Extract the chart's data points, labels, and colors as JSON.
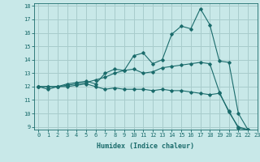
{
  "xlabel": "Humidex (Indice chaleur)",
  "background_color": "#c8e8e8",
  "grid_color": "#a8cccc",
  "line_color": "#1a6b6b",
  "xlim": [
    -0.5,
    23
  ],
  "ylim": [
    8.8,
    18.2
  ],
  "xticks": [
    0,
    1,
    2,
    3,
    4,
    5,
    6,
    7,
    8,
    9,
    10,
    11,
    12,
    13,
    14,
    15,
    16,
    17,
    18,
    19,
    20,
    21,
    22,
    23
  ],
  "yticks": [
    9,
    10,
    11,
    12,
    13,
    14,
    15,
    16,
    17,
    18
  ],
  "series": [
    [
      12.0,
      11.8,
      12.0,
      12.0,
      12.1,
      12.2,
      12.0,
      11.8,
      11.9,
      11.8,
      11.8,
      11.8,
      11.7,
      11.8,
      11.7,
      11.7,
      11.6,
      11.5,
      11.4,
      11.5,
      10.2,
      8.9,
      8.8
    ],
    [
      12.0,
      12.0,
      12.0,
      12.1,
      12.2,
      12.3,
      12.5,
      12.7,
      13.0,
      13.2,
      13.3,
      13.0,
      13.1,
      13.4,
      13.5,
      13.6,
      13.7,
      13.8,
      13.7,
      11.6,
      10.1,
      9.0,
      8.8
    ],
    [
      12.0,
      12.0,
      12.0,
      12.2,
      12.3,
      12.4,
      12.2,
      13.0,
      13.3,
      13.2,
      14.3,
      14.5,
      13.7,
      14.0,
      15.9,
      16.5,
      16.3,
      17.8,
      16.6,
      13.9,
      13.8,
      10.0,
      8.8
    ]
  ],
  "x_values": [
    0,
    1,
    2,
    3,
    4,
    5,
    6,
    7,
    8,
    9,
    10,
    11,
    12,
    13,
    14,
    15,
    16,
    17,
    18,
    19,
    20,
    21,
    22
  ]
}
